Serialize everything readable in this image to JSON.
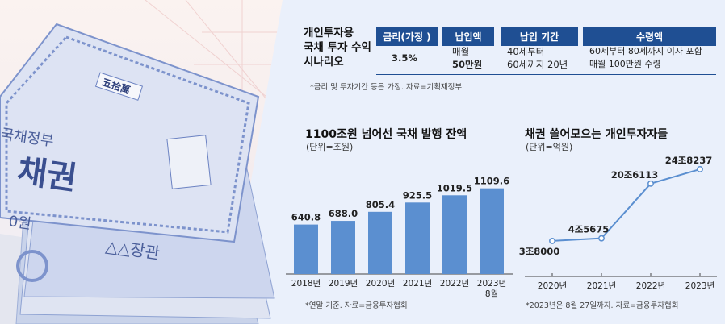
{
  "photo": {
    "bond_text_1": "국채정부",
    "bond_text_2": "채권",
    "bond_text_3": "0원",
    "bond_text_4": "△△장관",
    "bond_seal": "五拾萬"
  },
  "scenario_table": {
    "title_lines": [
      "개인투자용",
      "국채 투자 수익",
      "시나리오"
    ],
    "headers": [
      "금리(가정 )",
      "납입액",
      "납입 기간",
      "수령액"
    ],
    "values": [
      [
        "3.5%"
      ],
      [
        "매월",
        "50만원"
      ],
      [
        "40세부터",
        "60세까지 20년"
      ],
      [
        "60세부터 80세까지 이자 포함",
        "매월 100만원 수령"
      ]
    ],
    "note": "*금리 및 투자기간 등은 가정. 자료=기획재정부"
  },
  "chart_data": [
    {
      "type": "bar",
      "title": "1100조원 넘어선 국채 발행 잔액",
      "unit": "(단위=조원)",
      "categories": [
        "2018년",
        "2019년",
        "2020년",
        "2021년",
        "2022년",
        "2023년\n8월"
      ],
      "values": [
        640.8,
        688.0,
        805.4,
        925.5,
        1019.5,
        1109.6
      ],
      "value_labels": [
        "640.8",
        "688.0",
        "805.4",
        "925.5",
        "1019.5",
        "1109.6"
      ],
      "ylim": [
        0,
        1200
      ],
      "color": "#5b8fd0",
      "note": "*연말 기준. 자료=금융투자협회"
    },
    {
      "type": "line",
      "title": "채권 쓸어모으는 개인투자자들",
      "unit": "(단위=억원)",
      "categories": [
        "2020년",
        "2021년",
        "2022년",
        "2023년"
      ],
      "values": [
        38000,
        45675,
        206113,
        248237
      ],
      "value_labels": [
        "3조8000",
        "4조5675",
        "20조6113",
        "24조8237"
      ],
      "ylim": [
        0,
        260000
      ],
      "color": "#5b8fd0",
      "note": "*2023년은 8월 27일까지. 자료=금융투자협회"
    }
  ]
}
